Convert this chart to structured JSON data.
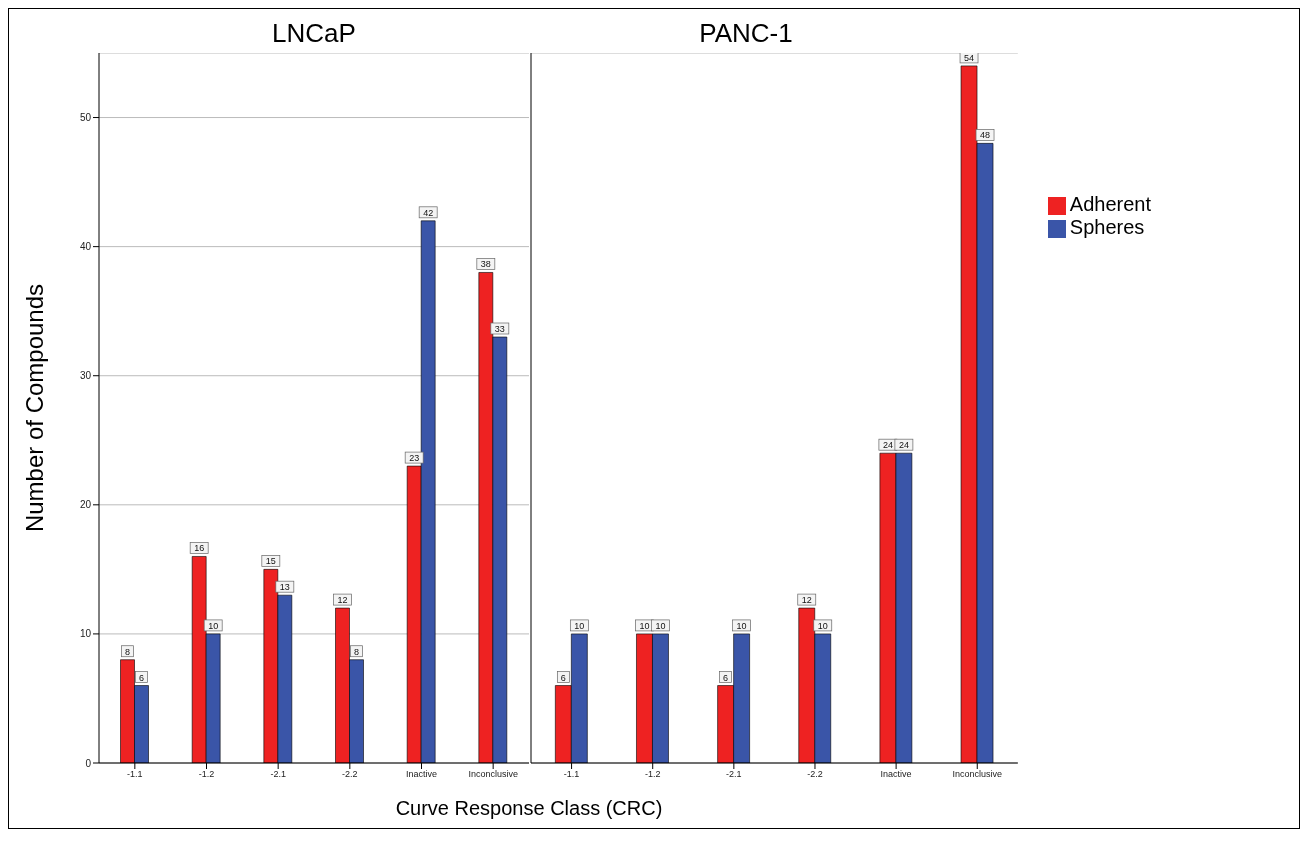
{
  "chart_data": [
    {
      "type": "bar",
      "title": "LNCaP",
      "xlabel": "Curve Response Class (CRC)",
      "ylabel": "Number of Compounds",
      "categories": [
        "-1.1",
        "-1.2",
        "-2.1",
        "-2.2",
        "Inactive",
        "Inconclusive"
      ],
      "series": [
        {
          "color": "#ee2222",
          "values": [
            8,
            16,
            15,
            12,
            23,
            38
          ]
        },
        {
          "color": "#3a55a8",
          "values": [
            6,
            10,
            13,
            8,
            42,
            33
          ]
        }
      ],
      "ylim": [
        0,
        55
      ],
      "yticks": [
        0,
        10,
        20,
        30,
        40,
        50
      ],
      "grid": "y",
      "data_labels": true,
      "legend": false
    },
    {
      "type": "bar",
      "title": "PANC-1",
      "categories": [
        "-1.1",
        "-1.2",
        "-2.1",
        "-2.2",
        "Inactive",
        "Inconclusive"
      ],
      "series": [
        {
          "name": "Adherent",
          "color": "#ee2222",
          "values": [
            6,
            10,
            6,
            12,
            24,
            54
          ]
        },
        {
          "name": "Spheres",
          "color": "#3a55a8",
          "values": [
            10,
            10,
            10,
            10,
            24,
            48
          ]
        }
      ],
      "ylim": [
        0,
        55
      ],
      "yticks": [
        0,
        10,
        20,
        30,
        40,
        50
      ],
      "grid": "y",
      "data_labels": true,
      "legend": "right",
      "tick_labels": "x"
    }
  ]
}
